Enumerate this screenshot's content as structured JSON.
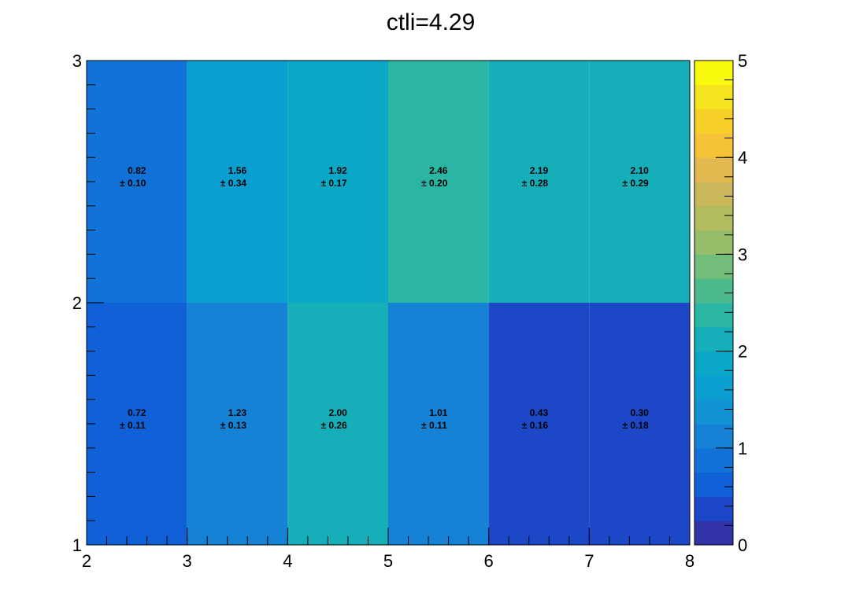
{
  "chart_data": {
    "type": "heatmap",
    "title": "ctli=4.29",
    "x_edges": [
      2,
      3,
      4,
      5,
      6,
      7,
      8
    ],
    "y_edges": [
      1,
      2,
      3
    ],
    "xlim": [
      2,
      8
    ],
    "ylim": [
      1,
      3
    ],
    "x_ticks": [
      2,
      3,
      4,
      5,
      6,
      7,
      8
    ],
    "y_ticks": [
      1,
      2,
      3
    ],
    "z_range": [
      0,
      5
    ],
    "z_ticks": [
      0,
      1,
      2,
      3,
      4,
      5
    ],
    "rows": [
      {
        "y_bin": [
          1,
          2
        ],
        "values": [
          "0.72",
          "1.23",
          "2.00",
          "1.01",
          "0.43",
          "0.30"
        ],
        "errors": [
          "0.11",
          "0.13",
          "0.26",
          "0.11",
          "0.16",
          "0.18"
        ]
      },
      {
        "y_bin": [
          2,
          3
        ],
        "values": [
          "0.82",
          "1.56",
          "1.92",
          "2.46",
          "2.19",
          "2.10"
        ],
        "errors": [
          "0.10",
          "0.34",
          "0.17",
          "0.20",
          "0.28",
          "0.29"
        ]
      }
    ],
    "palette": [
      "#3233a8",
      "#1c48c8",
      "#1061d8",
      "#1172d8",
      "#1582d6",
      "#1193d4",
      "#0a9fd0",
      "#0aa8c6",
      "#16aeb8",
      "#2bb6a4",
      "#4dba8c",
      "#72bd7a",
      "#96be6a",
      "#b2bc5e",
      "#cbb85a",
      "#e3ba50",
      "#f5c238",
      "#f6d028",
      "#f5e31e",
      "#f9f90e"
    ],
    "pm_symbol": "±"
  }
}
